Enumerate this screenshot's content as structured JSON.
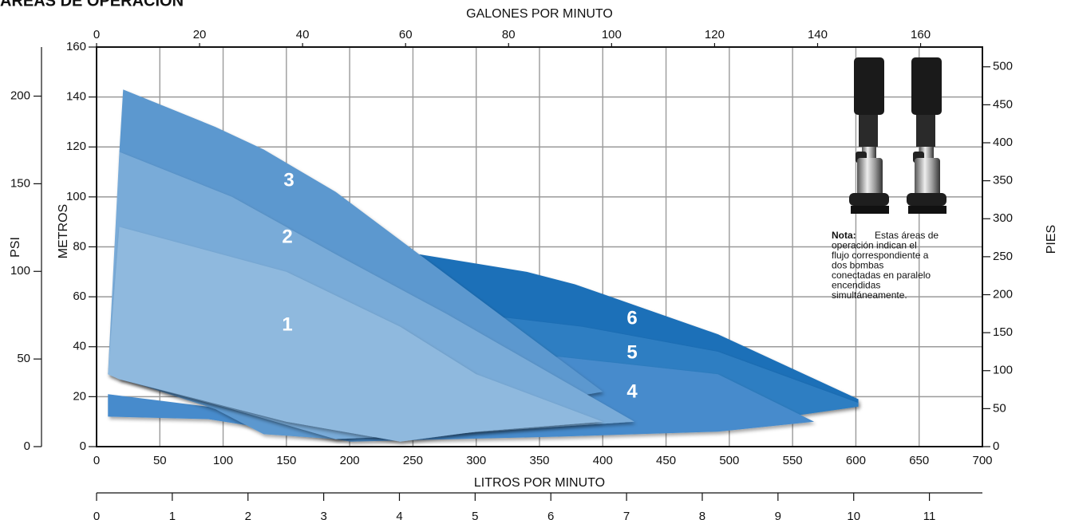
{
  "chart_data": {
    "type": "area",
    "title": "ÁREAS DE OPERACIÓN",
    "x_label": "LITROS POR MINUTO",
    "xlim": [
      0,
      700
    ],
    "xticks": [
      0,
      50,
      100,
      150,
      200,
      250,
      300,
      350,
      400,
      450,
      500,
      550,
      600,
      650,
      700
    ],
    "y_label": "METROS",
    "ylim": [
      0,
      160
    ],
    "yticks": [
      0,
      20,
      40,
      60,
      80,
      100,
      120,
      140,
      160
    ],
    "top_axis": {
      "label": "GALONES POR MINUTO",
      "lim": [
        0,
        172
      ],
      "ticks": [
        0,
        20,
        40,
        60,
        80,
        100,
        120,
        140,
        160
      ]
    },
    "left_axis": {
      "label": "PSI",
      "lim": [
        0,
        228
      ],
      "ticks": [
        0,
        50,
        100,
        150,
        200
      ]
    },
    "right_axis": {
      "label": "PIES",
      "lim": [
        0,
        526
      ],
      "ticks": [
        0,
        50,
        100,
        150,
        200,
        250,
        300,
        350,
        400,
        450,
        500
      ]
    },
    "bottom_axis": {
      "lim": [
        0,
        11.7
      ],
      "ticks": [
        0,
        1,
        2,
        3,
        4,
        5,
        6,
        7,
        8,
        9,
        10,
        11
      ]
    },
    "grid": true,
    "series": [
      {
        "name": "6",
        "color": "#1e6fb8",
        "x": [
          255,
          340,
          378,
          491,
          602
        ],
        "upper": [
          77,
          70,
          65,
          45,
          19
        ],
        "lower": [
          10,
          8,
          8,
          10,
          17
        ]
      },
      {
        "name": "5",
        "color": "#2f7ec2",
        "x": [
          300,
          384,
          491,
          602
        ],
        "upper": [
          53,
          48,
          38,
          17.5
        ],
        "lower": [
          5,
          6,
          8,
          16
        ]
      },
      {
        "name": "4",
        "color": "#468bcc",
        "x": [
          9,
          88,
          201,
          365,
          491,
          567
        ],
        "upper": [
          21,
          16,
          22,
          36,
          29,
          10
        ],
        "lower": [
          12,
          11,
          2,
          4,
          6,
          10
        ]
      },
      {
        "name": "3",
        "color": "#5c98cf",
        "x": [
          18,
          21,
          94,
          132,
          189,
          400
        ],
        "upper": [
          118,
          143,
          128,
          119,
          102,
          22
        ],
        "lower": [
          27,
          27,
          15,
          5,
          3,
          22
        ]
      },
      {
        "name": "2",
        "color": "#79abd8",
        "x": [
          9,
          18,
          107,
          189,
          277,
          425
        ],
        "upper": [
          29,
          118,
          100,
          77,
          53,
          10
        ],
        "lower": [
          29,
          27,
          15,
          3,
          5,
          10
        ]
      },
      {
        "name": "1",
        "color": "#8fb9de",
        "x": [
          9,
          18,
          150,
          240,
          300,
          400
        ],
        "upper": [
          29,
          88,
          70,
          48,
          29,
          10
        ],
        "lower": [
          29,
          27,
          10,
          2,
          6,
          10
        ]
      }
    ],
    "note": {
      "label": "Nota:",
      "lines": [
        "Estas áreas de",
        "operación indican el",
        "flujo correspondiente a",
        "dos bombas",
        "conectadas en paralelo",
        "encendidas",
        "simultáneamente."
      ]
    }
  }
}
